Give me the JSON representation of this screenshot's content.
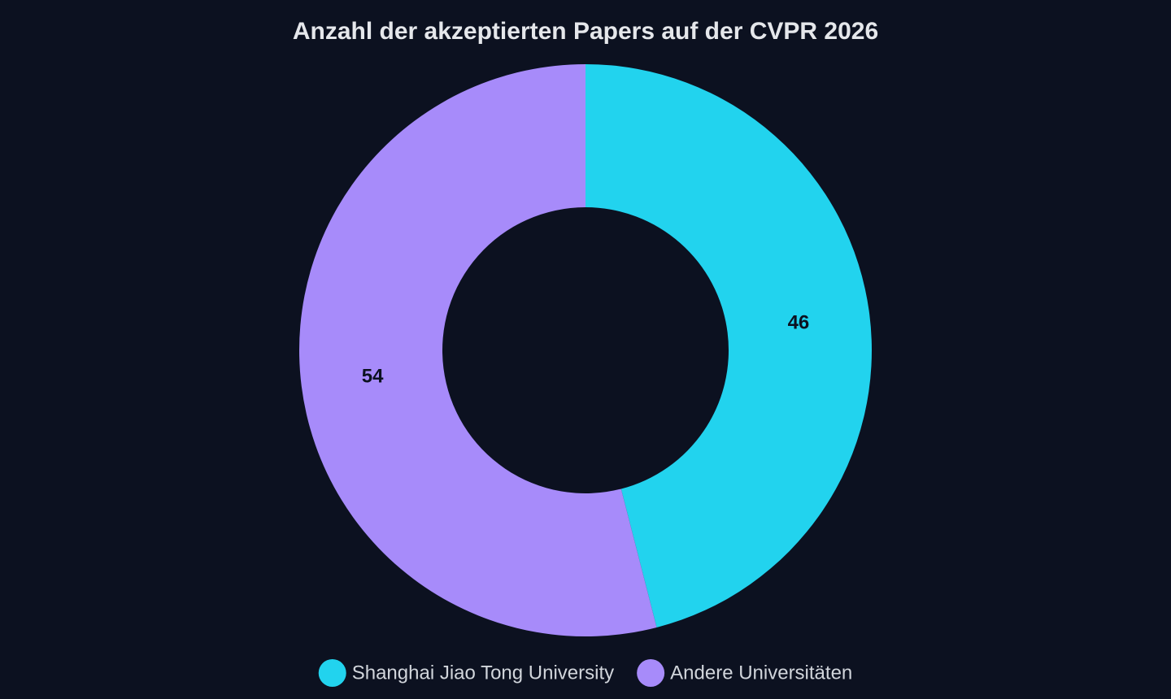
{
  "chart_data": {
    "type": "donut",
    "title": "Anzahl der akzeptierten Papers auf der CVPR 2026",
    "categories": [
      "Shanghai Jiao Tong University",
      "Andere Universitäten"
    ],
    "values": [
      46,
      54
    ],
    "colors": [
      "#22d3ee",
      "#a78bfa"
    ],
    "legend": "bottom"
  }
}
